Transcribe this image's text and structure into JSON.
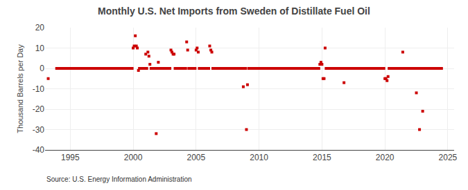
{
  "chart_data": {
    "type": "scatter",
    "title": "Monthly U.S. Net Imports from Sweden of Distillate Fuel Oil",
    "ylabel": "Thousand Barrels per Day",
    "annotations": [
      "Source: U.S. Energy Information Administration"
    ],
    "color": "#cc0000",
    "marker": "square",
    "grid": true,
    "xlim": [
      1993.0,
      2025.5
    ],
    "ylim": [
      -40,
      20
    ],
    "xticks": [
      1995,
      2000,
      2005,
      2010,
      2015,
      2020,
      2025
    ],
    "yticks": [
      -40,
      -30,
      -20,
      -10,
      0,
      10,
      20
    ],
    "x": [
      1993.25,
      1993.92,
      1994.0,
      1994.08,
      1994.17,
      1994.25,
      1994.33,
      1994.42,
      1994.5,
      1994.58,
      1994.67,
      1994.75,
      1994.83,
      1994.92,
      1995.0,
      1995.08,
      1995.17,
      1995.25,
      1995.33,
      1995.42,
      1995.5,
      1995.58,
      1995.67,
      1995.75,
      1995.83,
      1995.92,
      1996.0,
      1996.08,
      1996.17,
      1996.25,
      1996.33,
      1996.42,
      1996.5,
      1996.58,
      1996.67,
      1996.75,
      1996.83,
      1996.92,
      1997.0,
      1997.08,
      1997.17,
      1997.25,
      1997.33,
      1997.42,
      1997.5,
      1997.58,
      1997.67,
      1997.75,
      1997.83,
      1997.92,
      1998.0,
      1998.08,
      1998.17,
      1998.25,
      1998.33,
      1998.42,
      1998.5,
      1998.58,
      1998.67,
      1998.75,
      1998.83,
      1998.92,
      1999.0,
      1999.08,
      1999.17,
      1999.25,
      1999.33,
      1999.42,
      1999.5,
      1999.58,
      1999.67,
      1999.75,
      1999.83,
      1999.92,
      2000.0,
      2000.08,
      2000.17,
      2000.25,
      2000.33,
      2000.42,
      2000.5,
      2000.58,
      2000.67,
      2000.75,
      2000.83,
      2000.92,
      2001.0,
      2001.08,
      2001.17,
      2001.25,
      2001.33,
      2001.42,
      2001.5,
      2001.58,
      2001.67,
      2001.75,
      2001.83,
      2001.92,
      2002.0,
      2002.08,
      2002.17,
      2002.25,
      2002.33,
      2002.42,
      2002.5,
      2002.58,
      2002.67,
      2002.75,
      2002.83,
      2002.92,
      2003.0,
      2003.08,
      2003.17,
      2003.25,
      2003.33,
      2003.42,
      2003.5,
      2003.58,
      2003.67,
      2003.75,
      2003.83,
      2003.92,
      2004.0,
      2004.08,
      2004.17,
      2004.25,
      2004.33,
      2004.42,
      2004.5,
      2004.58,
      2004.67,
      2004.75,
      2004.83,
      2004.92,
      2005.0,
      2005.08,
      2005.17,
      2005.25,
      2005.33,
      2005.42,
      2005.5,
      2005.58,
      2005.67,
      2005.75,
      2005.83,
      2005.92,
      2006.0,
      2006.08,
      2006.17,
      2006.25,
      2006.33,
      2006.42,
      2006.5,
      2006.58,
      2006.67,
      2006.75,
      2006.83,
      2006.92,
      2007.0,
      2007.08,
      2007.17,
      2007.25,
      2007.33,
      2007.42,
      2007.5,
      2007.58,
      2007.67,
      2007.75,
      2007.83,
      2007.92,
      2008.0,
      2008.08,
      2008.17,
      2008.25,
      2008.33,
      2008.42,
      2008.5,
      2008.58,
      2008.67,
      2008.75,
      2008.83,
      2008.92,
      2009.0,
      2009.08,
      2009.17,
      2009.25,
      2009.33,
      2009.42,
      2009.5,
      2009.58,
      2009.67,
      2009.75,
      2009.83,
      2009.92,
      2010.0,
      2010.08,
      2010.17,
      2010.25,
      2010.33,
      2010.42,
      2010.5,
      2010.58,
      2010.67,
      2010.75,
      2010.83,
      2010.92,
      2011.0,
      2011.08,
      2011.17,
      2011.25,
      2011.33,
      2011.42,
      2011.5,
      2011.58,
      2011.67,
      2011.75,
      2011.83,
      2011.92,
      2012.0,
      2012.08,
      2012.17,
      2012.25,
      2012.33,
      2012.42,
      2012.5,
      2012.58,
      2012.67,
      2012.75,
      2012.83,
      2012.92,
      2013.0,
      2013.08,
      2013.17,
      2013.25,
      2013.33,
      2013.42,
      2013.5,
      2013.58,
      2013.67,
      2013.75,
      2013.83,
      2013.92,
      2014.0,
      2014.08,
      2014.17,
      2014.25,
      2014.33,
      2014.42,
      2014.5,
      2014.58,
      2014.67,
      2014.75,
      2014.83,
      2014.92,
      2015.0,
      2015.08,
      2015.17,
      2015.25,
      2015.33,
      2015.42,
      2015.5,
      2015.58,
      2015.67,
      2015.75,
      2015.83,
      2015.92,
      2016.0,
      2016.08,
      2016.17,
      2016.25,
      2016.33,
      2016.42,
      2016.5,
      2016.58,
      2016.67,
      2016.75,
      2016.83,
      2016.92,
      2017.0,
      2017.08,
      2017.17,
      2017.25,
      2017.33,
      2017.42,
      2017.5,
      2017.58,
      2017.67,
      2017.75,
      2017.83,
      2017.92,
      2018.0,
      2018.08,
      2018.17,
      2018.25,
      2018.33,
      2018.42,
      2018.5,
      2018.58,
      2018.67,
      2018.75,
      2018.83,
      2018.92,
      2019.0,
      2019.08,
      2019.17,
      2019.25,
      2019.33,
      2019.42,
      2019.5,
      2019.58,
      2019.67,
      2019.75,
      2019.83,
      2019.92,
      2020.0,
      2020.08,
      2020.17,
      2020.25,
      2020.33,
      2020.42,
      2020.5,
      2020.58,
      2020.67,
      2020.75,
      2020.83,
      2020.92,
      2021.0,
      2021.08,
      2021.17,
      2021.25,
      2021.33,
      2021.42,
      2021.5,
      2021.58,
      2021.67,
      2021.75,
      2021.83,
      2021.92,
      2022.0,
      2022.08,
      2022.17,
      2022.25,
      2022.33,
      2022.42,
      2022.5,
      2022.58,
      2022.67,
      2022.75,
      2022.83,
      2022.92,
      2023.0,
      2023.08,
      2023.17,
      2023.25,
      2023.33,
      2023.42,
      2023.5,
      2023.58,
      2023.67,
      2023.75,
      2023.83,
      2023.92,
      2024.0,
      2024.08,
      2024.17,
      2024.25,
      2024.33,
      2024.42,
      2024.5
    ],
    "values": [
      -5,
      0,
      0,
      0,
      0,
      0,
      0,
      0,
      0,
      0,
      0,
      0,
      0,
      0,
      0,
      0,
      0,
      0,
      0,
      0,
      0,
      0,
      0,
      0,
      0,
      0,
      0,
      0,
      0,
      0,
      0,
      0,
      0,
      0,
      0,
      0,
      0,
      0,
      0,
      0,
      0,
      0,
      0,
      0,
      0,
      0,
      0,
      0,
      0,
      0,
      0,
      0,
      0,
      0,
      0,
      0,
      0,
      0,
      0,
      0,
      0,
      0,
      0,
      0,
      0,
      0,
      0,
      0,
      0,
      0,
      0,
      0,
      0,
      0,
      10,
      11,
      16,
      11,
      10,
      -1,
      0,
      0,
      0,
      0,
      0,
      0,
      7,
      0,
      8,
      6,
      2,
      0,
      0,
      0,
      0,
      0,
      -32,
      0,
      3,
      0,
      0,
      0,
      0,
      0,
      0,
      0,
      0,
      0,
      0,
      0,
      9,
      8,
      7,
      7,
      0,
      0,
      0,
      0,
      0,
      0,
      0,
      0,
      0,
      0,
      0,
      13,
      9,
      0,
      0,
      0,
      0,
      0,
      0,
      0,
      9,
      10,
      8,
      0,
      0,
      0,
      0,
      0,
      0,
      0,
      0,
      0,
      0,
      11,
      9,
      8,
      0,
      0,
      0,
      0,
      0,
      0,
      0,
      0,
      0,
      0,
      0,
      0,
      0,
      0,
      0,
      0,
      0,
      0,
      0,
      0,
      0,
      0,
      0,
      0,
      0,
      0,
      0,
      0,
      0,
      -9,
      0,
      0,
      -30,
      -8,
      0,
      0,
      0,
      0,
      0,
      0,
      0,
      0,
      0,
      0,
      0,
      0,
      0,
      0,
      0,
      0,
      0,
      0,
      0,
      0,
      0,
      0,
      0,
      0,
      0,
      0,
      0,
      0,
      0,
      0,
      0,
      0,
      0,
      0,
      0,
      0,
      0,
      0,
      0,
      0,
      0,
      0,
      0,
      0,
      0,
      0,
      0,
      0,
      0,
      0,
      0,
      0,
      0,
      0,
      0,
      0,
      0,
      0,
      0,
      0,
      0,
      0,
      0,
      0,
      0,
      0,
      0,
      0,
      2,
      3,
      2,
      -5,
      -5,
      10,
      0,
      0,
      0,
      0,
      0,
      0,
      0,
      0,
      0,
      0,
      0,
      0,
      0,
      0,
      0,
      0,
      0,
      -7,
      0,
      0,
      0,
      0,
      0,
      0,
      0,
      0,
      0,
      0,
      0,
      0,
      0,
      0,
      0,
      0,
      0,
      0,
      0,
      0,
      0,
      0,
      0,
      0,
      0,
      0,
      0,
      0,
      0,
      0,
      0,
      0,
      0,
      0,
      0,
      0,
      0,
      0,
      -5,
      -5,
      -6,
      -4,
      0,
      0,
      0,
      0,
      0,
      0,
      0,
      0,
      0,
      0,
      0,
      0,
      0,
      8,
      0,
      0,
      0,
      0,
      0,
      0,
      0,
      0,
      0,
      0,
      0,
      0,
      -12,
      0,
      0,
      -30,
      0,
      0,
      -21,
      0,
      0,
      0,
      0,
      0,
      0,
      0,
      0,
      0,
      0,
      0,
      0,
      0,
      0,
      0,
      0,
      0,
      0
    ]
  }
}
